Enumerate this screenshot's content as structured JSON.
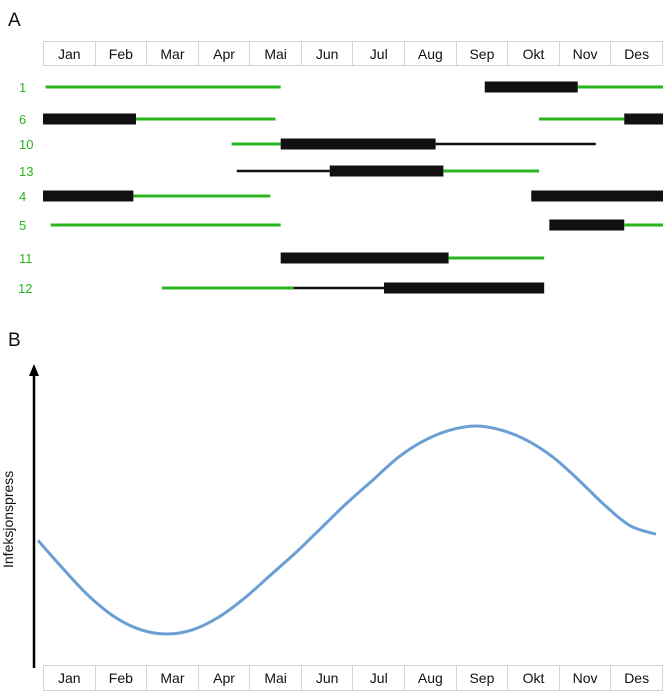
{
  "panels": {
    "a_label": "A",
    "b_label": "B"
  },
  "colors": {
    "green": "#2ab51f",
    "black": "#111111",
    "curve": "#6a9fd4",
    "label_green": "#2ab51f"
  },
  "chart_data": [
    {
      "type": "gantt",
      "title": "",
      "categories": [
        "Jan",
        "Feb",
        "Mar",
        "Apr",
        "Mai",
        "Jun",
        "Jul",
        "Aug",
        "Sep",
        "Okt",
        "Nov",
        "Des"
      ],
      "xlim": [
        0,
        12
      ],
      "rows": [
        {
          "label": "1",
          "segments": [
            {
              "start": 0.05,
              "end": 4.6,
              "style": "green"
            },
            {
              "start": 8.55,
              "end": 10.35,
              "style": "black-thick"
            },
            {
              "start": 10.35,
              "end": 12.0,
              "style": "green"
            }
          ]
        },
        {
          "label": "6",
          "segments": [
            {
              "start": 0.0,
              "end": 1.8,
              "style": "black-thick"
            },
            {
              "start": 1.8,
              "end": 4.5,
              "style": "green"
            },
            {
              "start": 9.6,
              "end": 11.25,
              "style": "green"
            },
            {
              "start": 11.25,
              "end": 12.0,
              "style": "black-thick"
            }
          ]
        },
        {
          "label": "10",
          "segments": [
            {
              "start": 3.65,
              "end": 4.6,
              "style": "green"
            },
            {
              "start": 4.6,
              "end": 7.6,
              "style": "black-thick"
            },
            {
              "start": 7.6,
              "end": 10.7,
              "style": "black-thin"
            }
          ]
        },
        {
          "label": "13",
          "segments": [
            {
              "start": 3.75,
              "end": 5.55,
              "style": "black-thin"
            },
            {
              "start": 5.55,
              "end": 7.75,
              "style": "black-thick"
            },
            {
              "start": 7.75,
              "end": 9.6,
              "style": "green"
            }
          ]
        },
        {
          "label": "4",
          "segments": [
            {
              "start": 0.0,
              "end": 1.75,
              "style": "black-thick"
            },
            {
              "start": 1.75,
              "end": 4.4,
              "style": "green"
            },
            {
              "start": 9.45,
              "end": 12.0,
              "style": "black-thick"
            }
          ]
        },
        {
          "label": "5",
          "segments": [
            {
              "start": 0.15,
              "end": 4.6,
              "style": "green"
            },
            {
              "start": 9.8,
              "end": 11.25,
              "style": "black-thick"
            },
            {
              "start": 11.25,
              "end": 12.0,
              "style": "green"
            }
          ]
        },
        {
          "label": "11",
          "segments": [
            {
              "start": 4.6,
              "end": 7.85,
              "style": "black-thick"
            },
            {
              "start": 7.85,
              "end": 9.7,
              "style": "green"
            }
          ]
        },
        {
          "label": "12",
          "segments": [
            {
              "start": 2.3,
              "end": 4.85,
              "style": "green"
            },
            {
              "start": 4.85,
              "end": 6.6,
              "style": "black-thin"
            },
            {
              "start": 6.6,
              "end": 9.7,
              "style": "black-thick"
            }
          ]
        }
      ]
    },
    {
      "type": "line",
      "title": "",
      "xlabel": "",
      "ylabel": "Infeksjonspress",
      "categories": [
        "Jan",
        "Feb",
        "Mar",
        "Apr",
        "Mai",
        "Jun",
        "Jul",
        "Aug",
        "Sep",
        "Okt",
        "Nov",
        "Des"
      ],
      "x": [
        0.0,
        0.5,
        1.0,
        1.5,
        2.0,
        2.5,
        3.0,
        3.5,
        4.0,
        4.5,
        5.0,
        5.5,
        6.0,
        6.5,
        7.0,
        7.5,
        8.0,
        8.5,
        9.0,
        9.5,
        10.0,
        10.5,
        11.0,
        11.5,
        12.0
      ],
      "y": [
        0.45,
        0.31,
        0.18,
        0.08,
        0.02,
        0.0,
        0.02,
        0.08,
        0.17,
        0.28,
        0.39,
        0.51,
        0.63,
        0.74,
        0.85,
        0.93,
        0.98,
        1.0,
        0.98,
        0.93,
        0.85,
        0.74,
        0.62,
        0.52,
        0.48
      ],
      "ylim": [
        0,
        1
      ],
      "grid": false,
      "legend": "none"
    }
  ]
}
